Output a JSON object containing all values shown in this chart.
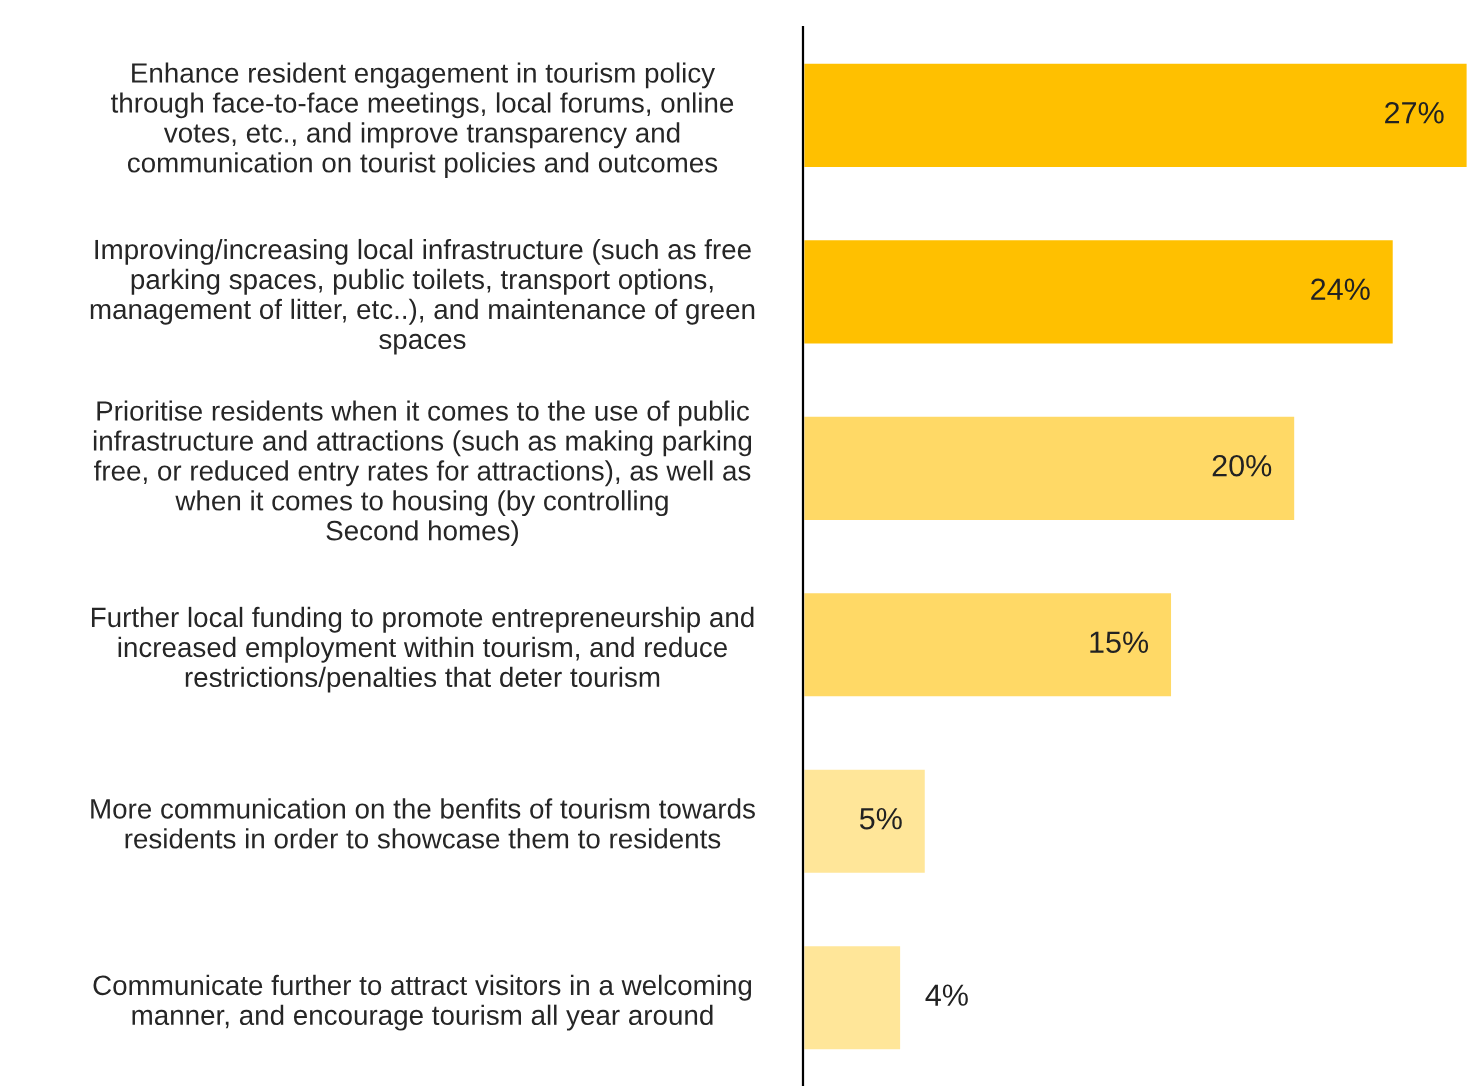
{
  "chart_data": {
    "type": "bar",
    "orientation": "horizontal",
    "categories": [
      "Enhance resident engagement in tourism policy\nthrough face-to-face meetings, local forums, online\nvotes, etc., and improve transparency and\ncommunication on tourist policies and outcomes",
      "Improving/increasing local infrastructure (such as free\nparking spaces, public toilets, transport options,\nmanagement of litter, etc..), and maintenance of green\nspaces",
      "Prioritise residents when it comes to the use of public\ninfrastructure and attractions (such as making parking\nfree, or reduced entry rates for attractions), as well as\nwhen it comes to housing (by controlling\nSecond homes)",
      "Further local funding to promote entrepreneurship and\nincreased employment within tourism, and reduce\nrestrictions/penalties that deter tourism",
      "More communication on the benfits of tourism towards\nresidents in order to showcase them to residents",
      "Communicate further to attract visitors in a welcoming\nmanner, and encourage tourism all year around"
    ],
    "values": [
      27,
      24,
      20,
      15,
      5,
      4
    ],
    "colors": [
      "#ffc000",
      "#ffc000",
      "#ffd966",
      "#ffd966",
      "#ffe699",
      "#ffe699"
    ],
    "value_labels": [
      "27%",
      "24%",
      "20%",
      "15%",
      "5%",
      "4%"
    ],
    "xlim": [
      0,
      27
    ],
    "grid": false,
    "legend": false
  }
}
